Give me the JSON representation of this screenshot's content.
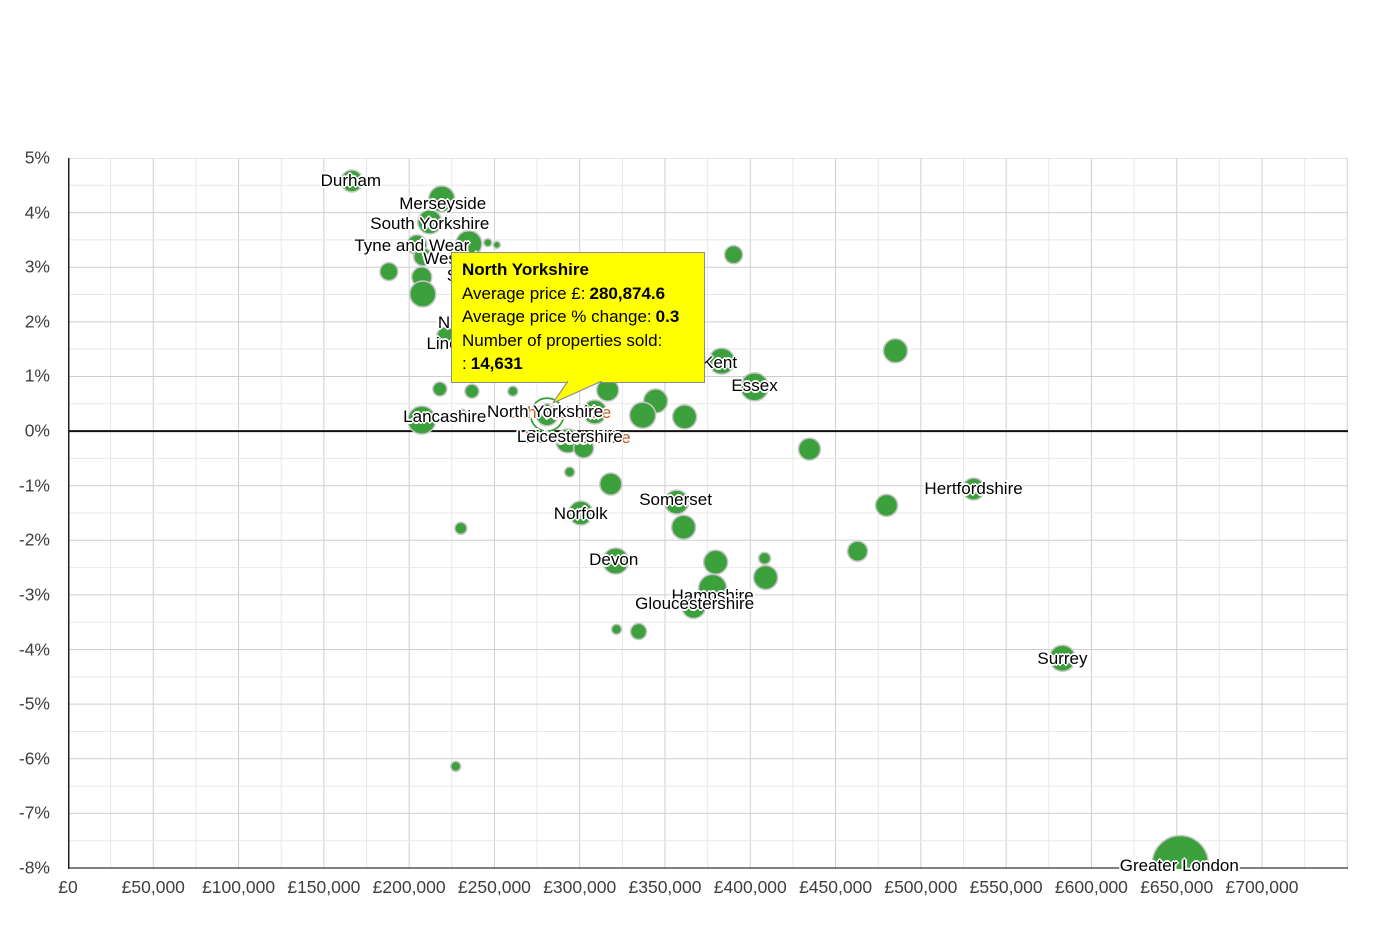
{
  "chart_data": {
    "type": "scatter",
    "title": "",
    "xlabel": "",
    "ylabel": "",
    "x_meaning": "average price (GBP)",
    "y_meaning": "average price % change",
    "size_meaning": "number of properties sold (bubble radius px)",
    "xlim": [
      0,
      750000
    ],
    "ylim": [
      -8,
      5
    ],
    "grid": "on",
    "legend": "none",
    "x_ticks": [
      "£0",
      "£50,000",
      "£100,000",
      "£150,000",
      "£200,000",
      "£250,000",
      "£300,000",
      "£350,000",
      "£400,000",
      "£450,000",
      "£500,000",
      "£550,000",
      "£600,000",
      "£650,000",
      "£700,000"
    ],
    "x_tick_values": [
      0,
      50000,
      100000,
      150000,
      200000,
      250000,
      300000,
      350000,
      400000,
      450000,
      500000,
      550000,
      600000,
      650000,
      700000
    ],
    "y_ticks": [
      "5%",
      "4%",
      "3%",
      "2%",
      "1%",
      "0%",
      "-1%",
      "-2%",
      "-3%",
      "-4%",
      "-5%",
      "-6%",
      "-7%",
      "-8%"
    ],
    "y_tick_values": [
      5,
      4,
      3,
      2,
      1,
      0,
      -1,
      -2,
      -3,
      -4,
      -5,
      -6,
      -7,
      -8
    ],
    "points": [
      {
        "name": "Durham",
        "price": 166400,
        "change": 4.58,
        "r": 11,
        "labeled": true
      },
      {
        "name": "Merseyside",
        "price": 219100,
        "change": 4.25,
        "r": 13,
        "labeled": true
      },
      {
        "name": "South Yorkshire",
        "price": 212100,
        "change": 3.83,
        "r": 12,
        "labeled": true
      },
      {
        "name": "Tyne and Wear",
        "price": 204500,
        "change": 3.41,
        "r": 10,
        "labeled": true
      },
      {
        "name": "West Yorkshire",
        "price": 208000,
        "change": 3.19,
        "r": 9,
        "labeled": true
      },
      {
        "name": "Staffordshire",
        "price": 207400,
        "change": 2.82,
        "r": 10,
        "labeled": true
      },
      {
        "name": "Nottinghamshire",
        "price": 208000,
        "change": 2.51,
        "r": 13,
        "labeled": true
      },
      {
        "name": "Lincolnshire",
        "price": 221500,
        "change": 1.74,
        "r": 9,
        "labeled": true
      },
      {
        "name": "Lancashire",
        "price": 207400,
        "change": 0.2,
        "r": 14,
        "labeled": true
      },
      {
        "name": "North Yorkshire",
        "price": 280874.6,
        "change": 0.3,
        "r": 11,
        "labeled": true,
        "selected": true,
        "sold": "14,631"
      },
      {
        "name": "Leicestershire",
        "price": 293000,
        "change": -0.18,
        "r": 12,
        "labeled": true
      },
      {
        "name": "Kent",
        "price": 383200,
        "change": 1.28,
        "r": 13,
        "labeled": true
      },
      {
        "name": "Essex",
        "price": 402500,
        "change": 0.81,
        "r": 14,
        "labeled": true
      },
      {
        "name": "Somerset",
        "price": 356800,
        "change": -1.3,
        "r": 12,
        "labeled": true
      },
      {
        "name": "Norfolk",
        "price": 300600,
        "change": -1.5,
        "r": 12,
        "labeled": true
      },
      {
        "name": "Devon",
        "price": 321100,
        "change": -2.38,
        "r": 13,
        "labeled": true
      },
      {
        "name": "Hampshire",
        "price": 377900,
        "change": -2.88,
        "r": 14,
        "labeled": true
      },
      {
        "name": "Gloucestershire",
        "price": 366800,
        "change": -3.21,
        "r": 12,
        "labeled": true
      },
      {
        "name": "Hertfordshire",
        "price": 530900,
        "change": -1.06,
        "r": 11,
        "labeled": true
      },
      {
        "name": "Surrey",
        "price": 583000,
        "change": -4.16,
        "r": 13,
        "labeled": true
      },
      {
        "name": "Greater London",
        "price": 652100,
        "change": -7.92,
        "r": 28,
        "labeled": true
      },
      {
        "name": null,
        "price": 188100,
        "change": 2.92,
        "r": 9,
        "labeled": false
      },
      {
        "name": null,
        "price": 235000,
        "change": 3.43,
        "r": 13,
        "labeled": false
      },
      {
        "name": null,
        "price": 246100,
        "change": 3.45,
        "r": 4,
        "labeled": false
      },
      {
        "name": null,
        "price": 251400,
        "change": 3.41,
        "r": 3.5,
        "labeled": false
      },
      {
        "name": null,
        "price": 230800,
        "change": 0.31,
        "r": 5,
        "labeled": false
      },
      {
        "name": null,
        "price": 308800,
        "change": 0.35,
        "r": 12,
        "labeled": false
      },
      {
        "name": null,
        "price": 316400,
        "change": 0.75,
        "r": 11,
        "labeled": false
      },
      {
        "name": null,
        "price": 344500,
        "change": 0.55,
        "r": 12,
        "labeled": false
      },
      {
        "name": null,
        "price": 336900,
        "change": 0.29,
        "r": 13,
        "labeled": false
      },
      {
        "name": null,
        "price": 361500,
        "change": 0.26,
        "r": 12,
        "labeled": false
      },
      {
        "name": null,
        "price": 302300,
        "change": -0.31,
        "r": 10,
        "labeled": false
      },
      {
        "name": null,
        "price": 294100,
        "change": -0.75,
        "r": 5,
        "labeled": false
      },
      {
        "name": null,
        "price": 318200,
        "change": -0.97,
        "r": 11,
        "labeled": false
      },
      {
        "name": null,
        "price": 390200,
        "change": 3.23,
        "r": 9,
        "labeled": false
      },
      {
        "name": null,
        "price": 485100,
        "change": 1.47,
        "r": 12,
        "labeled": false
      },
      {
        "name": null,
        "price": 434700,
        "change": -0.33,
        "r": 11,
        "labeled": false
      },
      {
        "name": null,
        "price": 360900,
        "change": -1.76,
        "r": 12,
        "labeled": false
      },
      {
        "name": null,
        "price": 230300,
        "change": -1.78,
        "r": 6,
        "labeled": false
      },
      {
        "name": null,
        "price": 379700,
        "change": -2.4,
        "r": 12,
        "labeled": false
      },
      {
        "name": null,
        "price": 408400,
        "change": -2.33,
        "r": 6,
        "labeled": false
      },
      {
        "name": null,
        "price": 409000,
        "change": -2.68,
        "r": 12,
        "labeled": false
      },
      {
        "name": null,
        "price": 321600,
        "change": -3.63,
        "r": 5,
        "labeled": false
      },
      {
        "name": null,
        "price": 334500,
        "change": -3.67,
        "r": 8,
        "labeled": false
      },
      {
        "name": null,
        "price": 479900,
        "change": -1.36,
        "r": 11,
        "labeled": false
      },
      {
        "name": null,
        "price": 462900,
        "change": -2.2,
        "r": 10,
        "labeled": false
      },
      {
        "name": null,
        "price": 227300,
        "change": -6.14,
        "r": 5,
        "labeled": false
      },
      {
        "name": null,
        "price": 218000,
        "change": 0.77,
        "r": 7,
        "labeled": false
      },
      {
        "name": null,
        "price": 236800,
        "change": 0.73,
        "r": 7,
        "labeled": false
      },
      {
        "name": null,
        "price": 260800,
        "change": 0.73,
        "r": 5,
        "labeled": false
      }
    ]
  },
  "ghost_labels": [
    "North Yorkshire",
    "Leicestershire"
  ],
  "selected_county": "North Yorkshire",
  "tooltip": {
    "county": "North Yorkshire",
    "avg_price_label": "Average price £:",
    "avg_price_value": "280,874.6",
    "pct_change_label": "Average price % change:",
    "pct_change_value": "0.3",
    "sold_label": "Number of properties sold:",
    "sold_prefix": ":",
    "sold_value": "14,631"
  },
  "colors": {
    "bubble": "#3ca03c",
    "bubble_stroke": "#c6c6c6",
    "tooltip_bg": "#ffff00",
    "tooltip_border": "#8c8c8c",
    "label_text": "#000000",
    "ghost_label_text": "#c35a1e",
    "axis_text": "#3f3f3f",
    "grid_major": "#cfcfcf",
    "grid_minor": "#e8e8e8",
    "zero_line": "#111111",
    "axis_line": "#222222"
  }
}
